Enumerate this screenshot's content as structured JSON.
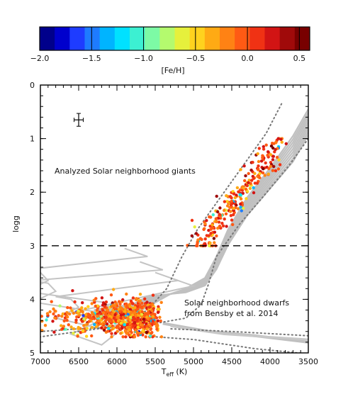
{
  "chart_data": [
    {
      "type": "colorbar",
      "label": "[Fe/H]",
      "ticks": [
        "-2.0",
        "-1.5",
        "-1.0",
        "-0.5",
        "0.0",
        "0.5"
      ],
      "range": [
        -2.0,
        0.6
      ],
      "colors": [
        "#00008b",
        "#0000cd",
        "#1e3cff",
        "#1e7bff",
        "#00b4ff",
        "#00e1ff",
        "#3cf0d2",
        "#7dfaa5",
        "#b4fa6e",
        "#e6f03c",
        "#ffd21e",
        "#ffaa14",
        "#ff8214",
        "#ff5a14",
        "#f03214",
        "#d21414",
        "#a00a0a",
        "#780000"
      ]
    },
    {
      "type": "scatter",
      "xlabel": "T_eff (K)",
      "ylabel": "logg",
      "xlim": [
        7000,
        3500
      ],
      "ylim": [
        0,
        5
      ],
      "x_ticks": [
        "7000",
        "6500",
        "6000",
        "5500",
        "5000",
        "4500",
        "4000",
        "3500"
      ],
      "y_ticks": [
        "0",
        "1",
        "2",
        "3",
        "4",
        "5"
      ],
      "annotations": [
        "Analyzed Solar neighborhood giants",
        "Solar neighborhood dwarfs",
        "from Bensby et al. 2014"
      ],
      "divider_logg": 3.0,
      "error_bar": {
        "teff": 6500,
        "logg": 0.65,
        "dteff": 60,
        "dlogg": 0.12
      },
      "series": [
        {
          "kind": "giants",
          "teff_range": [
            3850,
            4950
          ],
          "logg_range": [
            1.0,
            3.0
          ],
          "feh_mean": 0.0,
          "count": 260
        },
        {
          "kind": "dwarfs",
          "teff_range": [
            5350,
            7000
          ],
          "logg_range": [
            3.75,
            4.7
          ],
          "feh_mean": -0.1,
          "count": 720
        }
      ],
      "isochrones": [
        "grey",
        "dotted"
      ]
    }
  ]
}
